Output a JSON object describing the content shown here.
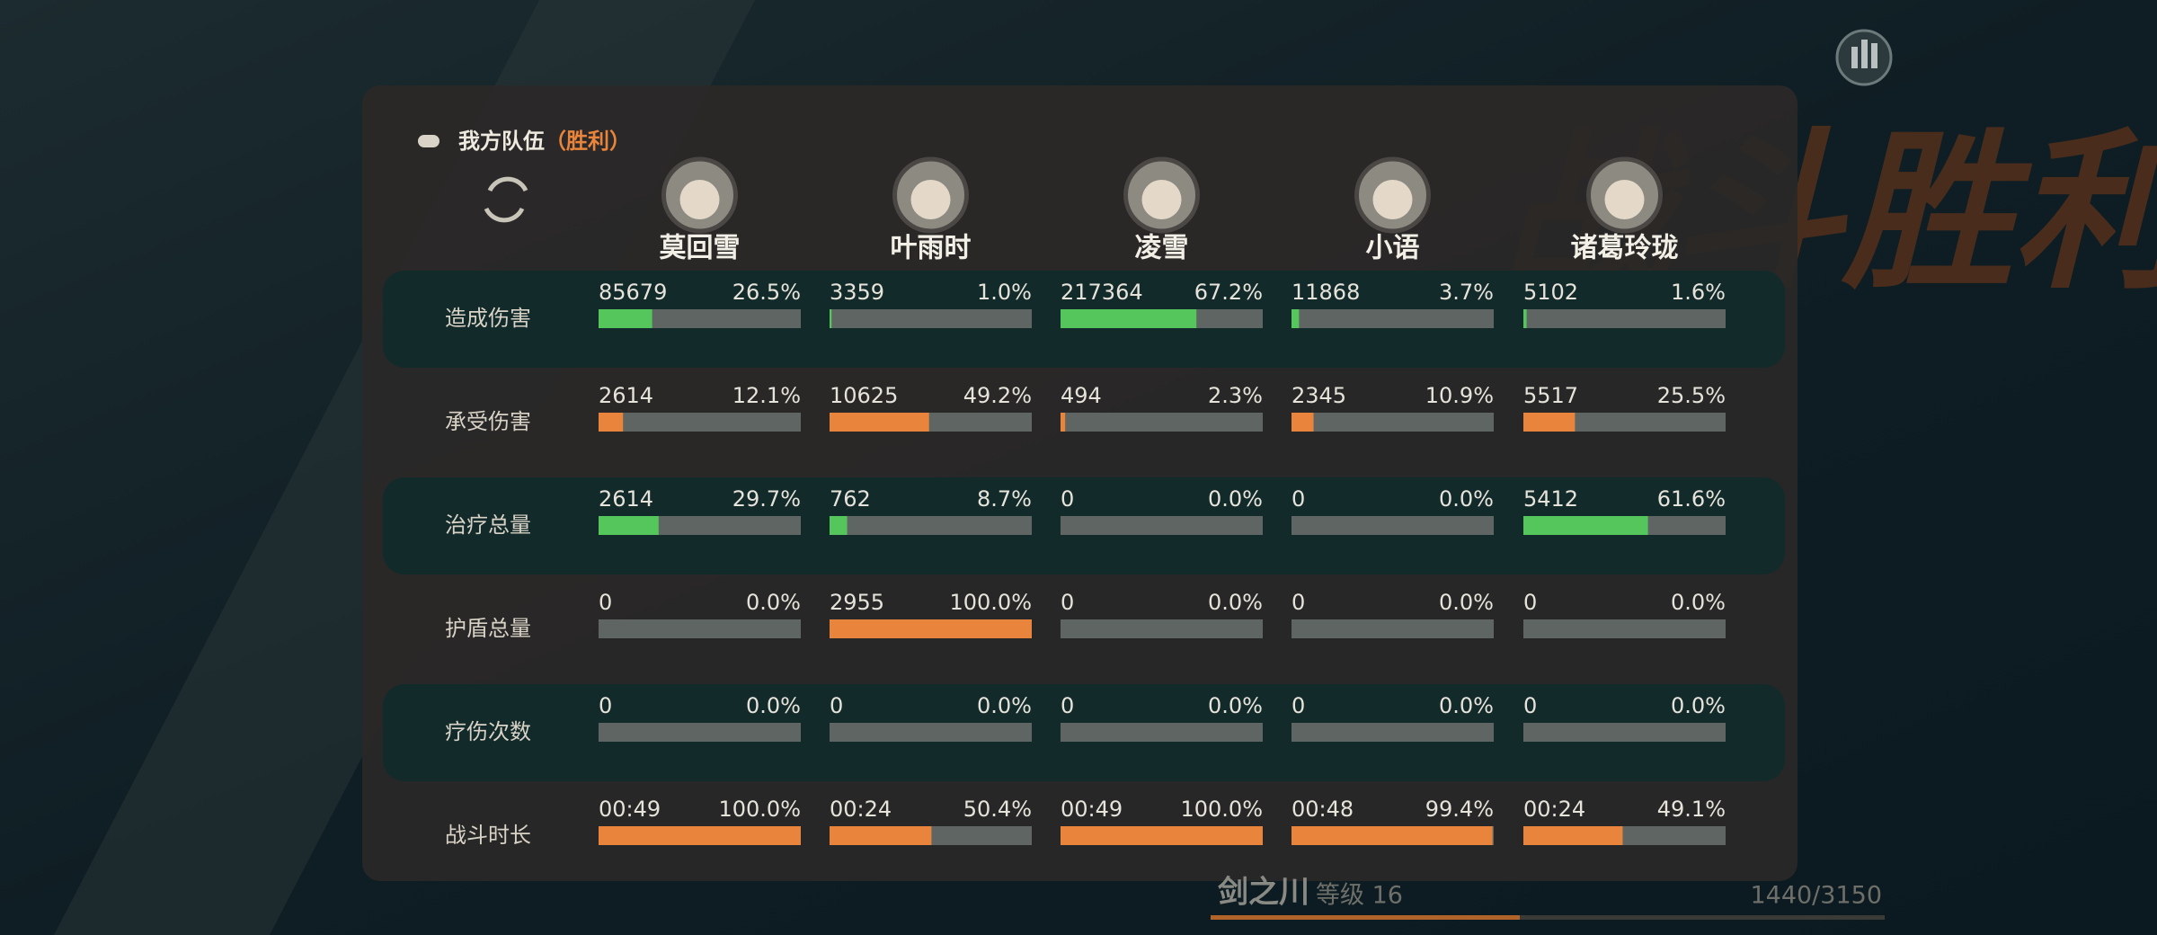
{
  "header": {
    "title": "我方队伍",
    "result": "（胜利）"
  },
  "watermark": "战斗胜利",
  "characters": [
    "莫回雪",
    "叶雨时",
    "凌雪",
    "小语",
    "诸葛玲珑"
  ],
  "rows": [
    {
      "label": "造成伤害",
      "bar_color": "#55c65c",
      "cells": [
        {
          "amount": 85679,
          "share": {
            "value": 26.5,
            "label": "26.5%"
          }
        },
        {
          "amount": 3359,
          "share": {
            "value": 1.0,
            "label": "1.0%"
          }
        },
        {
          "amount": 217364,
          "share": {
            "value": 67.2,
            "label": "67.2%"
          }
        },
        {
          "amount": 11868,
          "share": {
            "value": 3.7,
            "label": "3.7%"
          }
        },
        {
          "amount": 5102,
          "share": {
            "value": 1.6,
            "label": "1.6%"
          }
        }
      ]
    },
    {
      "label": "承受伤害",
      "bar_color": "#e8843b",
      "cells": [
        {
          "amount": 2614,
          "share": {
            "value": 12.1,
            "label": "12.1%"
          }
        },
        {
          "amount": 10625,
          "share": {
            "value": 49.2,
            "label": "49.2%"
          }
        },
        {
          "amount": 494,
          "share": {
            "value": 2.3,
            "label": "2.3%"
          }
        },
        {
          "amount": 2345,
          "share": {
            "value": 10.9,
            "label": "10.9%"
          }
        },
        {
          "amount": 5517,
          "share": {
            "value": 25.5,
            "label": "25.5%"
          }
        }
      ]
    },
    {
      "label": "治疗总量",
      "bar_color": "#55c65c",
      "cells": [
        {
          "amount": 2614,
          "share": {
            "value": 29.7,
            "label": "29.7%"
          }
        },
        {
          "amount": 762,
          "share": {
            "value": 8.7,
            "label": "8.7%"
          }
        },
        {
          "amount": 0,
          "share": {
            "value": 0.0,
            "label": "0.0%"
          }
        },
        {
          "amount": 0,
          "share": {
            "value": 0.0,
            "label": "0.0%"
          }
        },
        {
          "amount": 5412,
          "share": {
            "value": 61.6,
            "label": "61.6%"
          }
        }
      ]
    },
    {
      "label": "护盾总量",
      "bar_color": "#e8843b",
      "cells": [
        {
          "amount": 0,
          "share": {
            "value": 0.0,
            "label": "0.0%"
          }
        },
        {
          "amount": 2955,
          "share": {
            "value": 100.0,
            "label": "100.0%"
          }
        },
        {
          "amount": 0,
          "share": {
            "value": 0.0,
            "label": "0.0%"
          }
        },
        {
          "amount": 0,
          "share": {
            "value": 0.0,
            "label": "0.0%"
          }
        },
        {
          "amount": 0,
          "share": {
            "value": 0.0,
            "label": "0.0%"
          }
        }
      ]
    },
    {
      "label": "疗伤次数",
      "bar_color": "#55c65c",
      "cells": [
        {
          "amount": 0,
          "share": {
            "value": 0.0,
            "label": "0.0%"
          }
        },
        {
          "amount": 0,
          "share": {
            "value": 0.0,
            "label": "0.0%"
          }
        },
        {
          "amount": 0,
          "share": {
            "value": 0.0,
            "label": "0.0%"
          }
        },
        {
          "amount": 0,
          "share": {
            "value": 0.0,
            "label": "0.0%"
          }
        },
        {
          "amount": 0,
          "share": {
            "value": 0.0,
            "label": "0.0%"
          }
        }
      ]
    },
    {
      "label": "战斗时长",
      "bar_color": "#e8843b",
      "cells": [
        {
          "amount": "00:49",
          "share": {
            "value": 100.0,
            "label": "100.0%"
          }
        },
        {
          "amount": "00:24",
          "share": {
            "value": 50.4,
            "label": "50.4%"
          }
        },
        {
          "amount": "00:49",
          "share": {
            "value": 100.0,
            "label": "100.0%"
          }
        },
        {
          "amount": "00:48",
          "share": {
            "value": 99.4,
            "label": "99.4%"
          }
        },
        {
          "amount": "00:24",
          "share": {
            "value": 49.1,
            "label": "49.1%"
          }
        }
      ]
    }
  ],
  "footer": {
    "character": "剑之川",
    "level": "等级 16",
    "exp": "1440/3150"
  }
}
